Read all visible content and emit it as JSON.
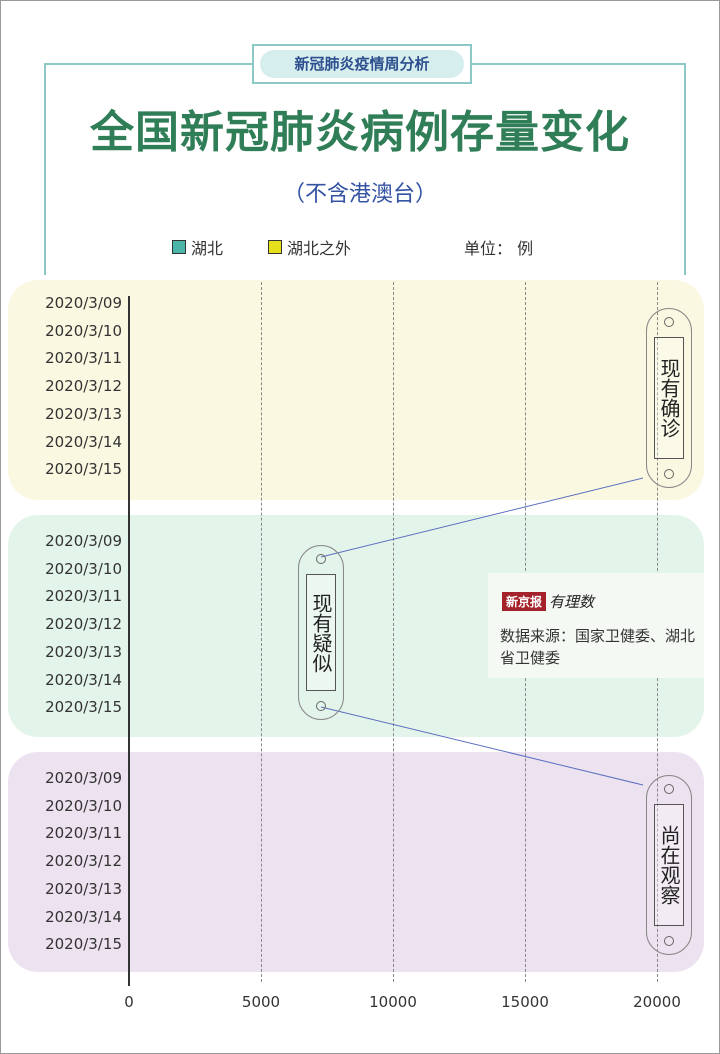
{
  "header": {
    "series_tag": "新冠肺炎疫情周分析",
    "title": "全国新冠肺炎病例存量变化",
    "subtitle": "（不含港澳台）",
    "unit": "单位：  例"
  },
  "colors": {
    "hubei": "#4ab5a8",
    "outside_hubei": "#e6e01c",
    "panel_confirmed": "#faf8e0",
    "panel_suspected": "#e3f4ea",
    "panel_observed": "#ede2f0",
    "title": "#2f7e57"
  },
  "chart_data": {
    "type": "bar",
    "orientation": "horizontal",
    "stacked": true,
    "groups": [
      {
        "name": "现有确诊",
        "categories": [
          "2020/3/09",
          "2020/3/10",
          "2020/3/11",
          "2020/3/12",
          "2020/3/13",
          "2020/3/14",
          "2020/3/15"
        ]
      },
      {
        "name": "现有疑似",
        "categories": [
          "2020/3/09",
          "2020/3/10",
          "2020/3/11",
          "2020/3/12",
          "2020/3/13",
          "2020/3/14",
          "2020/3/15"
        ]
      },
      {
        "name": "尚在观察",
        "categories": [
          "2020/3/09",
          "2020/3/10",
          "2020/3/11",
          "2020/3/12",
          "2020/3/13",
          "2020/3/14",
          "2020/3/15"
        ]
      }
    ],
    "series": [
      {
        "name": "湖北"
      },
      {
        "name": "湖北之外"
      }
    ],
    "x_ticks": [
      "0",
      "5000",
      "10000",
      "15000",
      "20000"
    ],
    "xlim": [
      0,
      20000
    ],
    "grid": true,
    "legend": "top"
  },
  "source": {
    "logo": "新京报",
    "logo_sub": "有理数",
    "text": "数据来源：国家卫健委、湖北省卫健委"
  }
}
